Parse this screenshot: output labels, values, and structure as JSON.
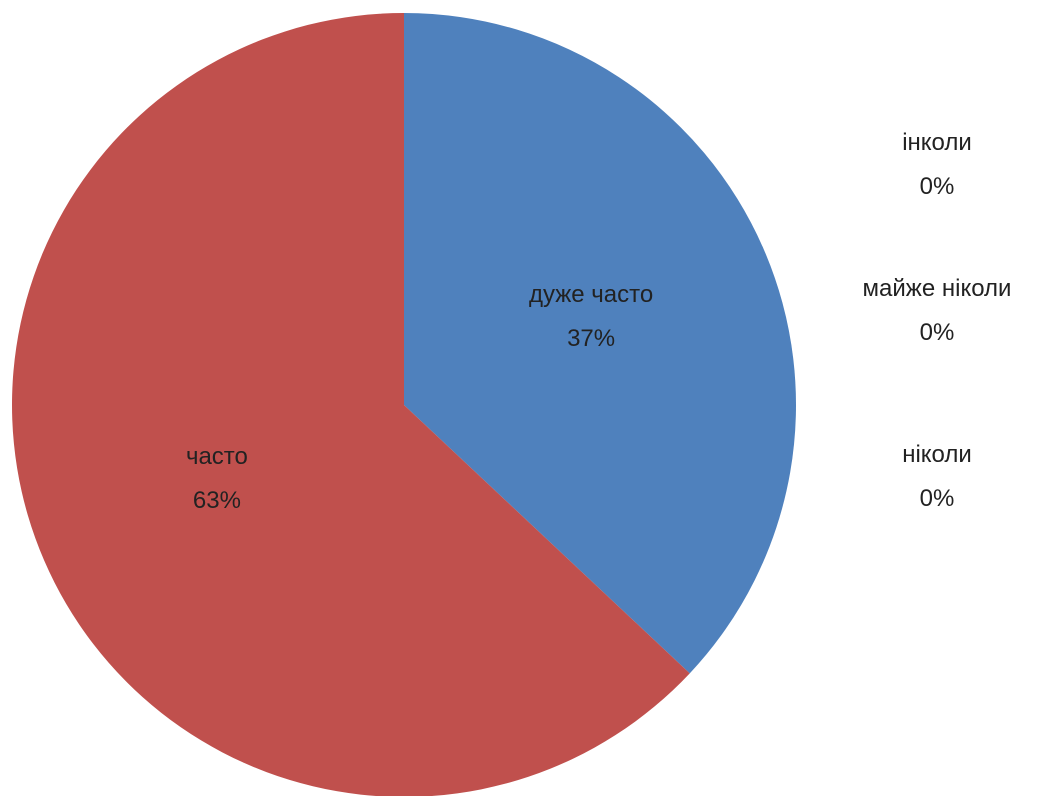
{
  "chart_data": {
    "type": "pie",
    "start_angle_deg": 0,
    "direction": "clockwise",
    "slices": [
      {
        "label": "дуже часто",
        "value": 37,
        "value_text": "37%",
        "color": "#4f81bd"
      },
      {
        "label": "часто",
        "value": 63,
        "value_text": "63%",
        "color": "#c0504d"
      },
      {
        "label": "інколи",
        "value": 0,
        "value_text": "0%",
        "color": "#9bbb59"
      },
      {
        "label": "майже ніколи",
        "value": 0,
        "value_text": "0%",
        "color": "#8064a2"
      },
      {
        "label": "ніколи",
        "value": 0,
        "value_text": "0%",
        "color": "#4bacc6"
      }
    ],
    "legend": "none"
  }
}
